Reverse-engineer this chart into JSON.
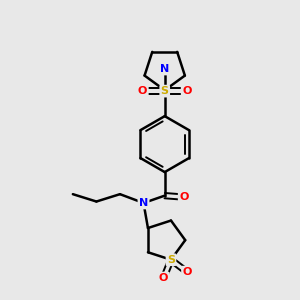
{
  "background_color": "#e8e8e8",
  "atom_colors": {
    "C": "#000000",
    "N": "#0000ff",
    "O": "#ff0000",
    "S": "#ccaa00",
    "H": "#000000"
  },
  "bond_color": "#000000",
  "bond_width": 1.8,
  "figsize": [
    3.0,
    3.0
  ],
  "dpi": 100
}
